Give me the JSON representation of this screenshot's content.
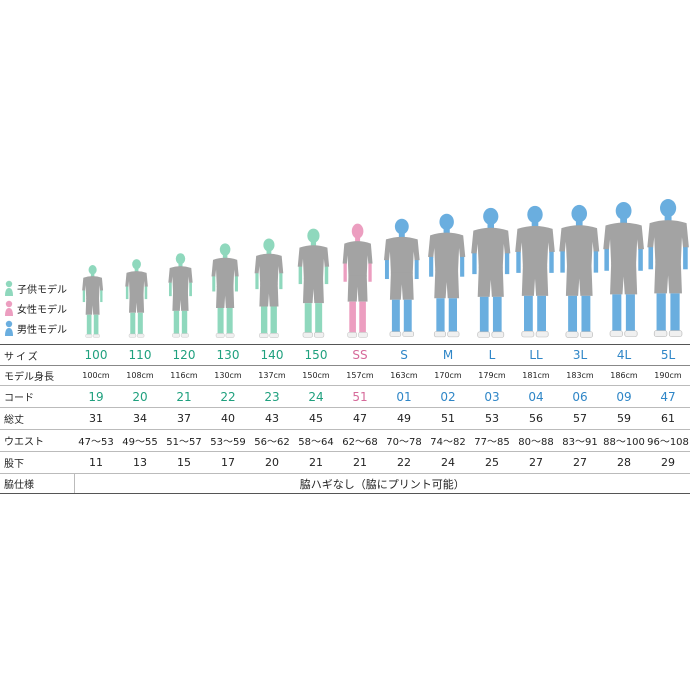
{
  "legend": [
    {
      "label": "子供モデル",
      "color": "#8fd8bd"
    },
    {
      "label": "女性モデル",
      "color": "#ec9ec0"
    },
    {
      "label": "男性モデル",
      "color": "#6aaedf"
    }
  ],
  "colors": {
    "kid": "#1fa07e",
    "female": "#d66a9a",
    "male": "#2f86c7",
    "garment": "#a3a3a3",
    "kid_skin": "#8fd8bd",
    "female_skin": "#ec9ec0",
    "male_skin": "#6aaedf"
  },
  "rows": {
    "size_label": "サイズ",
    "height_label": "モデル身長",
    "code_label": "コード",
    "length_label": "総丈",
    "waist_label": "ウエスト",
    "inseam_label": "股下",
    "side_label": "脇仕様",
    "side_value": "脇ハギなし（脇にプリント可能）"
  },
  "sizes": [
    {
      "size": "100",
      "height": "100cm",
      "code": "19",
      "length": "31",
      "waist": "47〜53",
      "inseam": "11",
      "type": "kid"
    },
    {
      "size": "110",
      "height": "108cm",
      "code": "20",
      "length": "34",
      "waist": "49〜55",
      "inseam": "13",
      "type": "kid"
    },
    {
      "size": "120",
      "height": "116cm",
      "code": "21",
      "length": "37",
      "waist": "51〜57",
      "inseam": "15",
      "type": "kid"
    },
    {
      "size": "130",
      "height": "130cm",
      "code": "22",
      "length": "40",
      "waist": "53〜59",
      "inseam": "17",
      "type": "kid"
    },
    {
      "size": "140",
      "height": "137cm",
      "code": "23",
      "length": "43",
      "waist": "56〜62",
      "inseam": "20",
      "type": "kid"
    },
    {
      "size": "150",
      "height": "150cm",
      "code": "24",
      "length": "45",
      "waist": "58〜64",
      "inseam": "21",
      "type": "kid"
    },
    {
      "size": "SS",
      "height": "157cm",
      "code": "51",
      "length": "47",
      "waist": "62〜68",
      "inseam": "21",
      "type": "female"
    },
    {
      "size": "S",
      "height": "163cm",
      "code": "01",
      "length": "49",
      "waist": "70〜78",
      "inseam": "22",
      "type": "male"
    },
    {
      "size": "M",
      "height": "170cm",
      "code": "02",
      "length": "51",
      "waist": "74〜82",
      "inseam": "24",
      "type": "male"
    },
    {
      "size": "L",
      "height": "179cm",
      "code": "03",
      "length": "53",
      "waist": "77〜85",
      "inseam": "25",
      "type": "male"
    },
    {
      "size": "LL",
      "height": "181cm",
      "code": "04",
      "length": "56",
      "waist": "80〜88",
      "inseam": "27",
      "type": "male"
    },
    {
      "size": "3L",
      "height": "183cm",
      "code": "06",
      "length": "57",
      "waist": "83〜91",
      "inseam": "27",
      "type": "male"
    },
    {
      "size": "4L",
      "height": "186cm",
      "code": "09",
      "length": "59",
      "waist": "88〜100",
      "inseam": "28",
      "type": "male"
    },
    {
      "size": "5L",
      "height": "190cm",
      "code": "47",
      "length": "61",
      "waist": "96〜108",
      "inseam": "29",
      "type": "male"
    }
  ]
}
